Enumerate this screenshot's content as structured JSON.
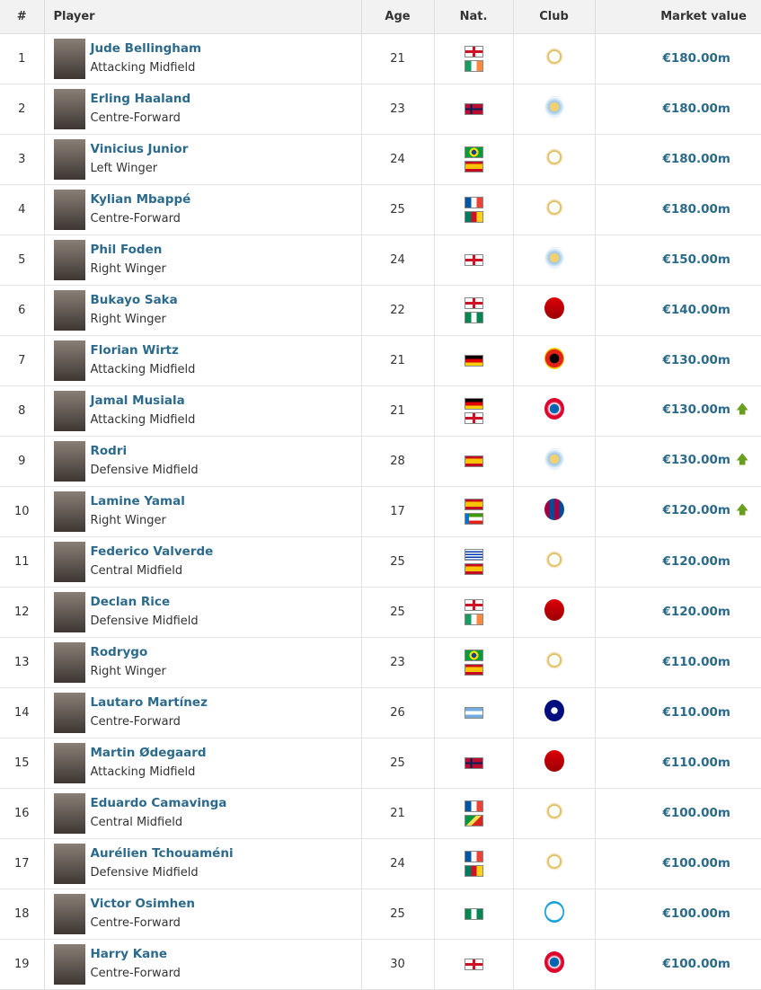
{
  "headers": {
    "num": "#",
    "player": "Player",
    "age": "Age",
    "nat": "Nat.",
    "club": "Club",
    "value": "Market value"
  },
  "colors": {
    "link": "#2c6a8c",
    "header_bg": "#f2f2f2",
    "trend_up": "#6b9e1f"
  },
  "rows": [
    {
      "rank": "1",
      "name": "Jude Bellingham",
      "position": "Attacking Midfield",
      "age": "21",
      "nat": [
        "eng",
        "irl"
      ],
      "club": "real-madrid",
      "value": "€180.00m",
      "trend": ""
    },
    {
      "rank": "2",
      "name": "Erling Haaland",
      "position": "Centre-Forward",
      "age": "23",
      "nat": [
        "nor"
      ],
      "club": "man-city",
      "value": "€180.00m",
      "trend": ""
    },
    {
      "rank": "3",
      "name": "Vinicius Junior",
      "position": "Left Winger",
      "age": "24",
      "nat": [
        "bra",
        "esp"
      ],
      "club": "real-madrid",
      "value": "€180.00m",
      "trend": ""
    },
    {
      "rank": "4",
      "name": "Kylian Mbappé",
      "position": "Centre-Forward",
      "age": "25",
      "nat": [
        "fra",
        "cmr"
      ],
      "club": "real-madrid",
      "value": "€180.00m",
      "trend": ""
    },
    {
      "rank": "5",
      "name": "Phil Foden",
      "position": "Right Winger",
      "age": "24",
      "nat": [
        "eng"
      ],
      "club": "man-city",
      "value": "€150.00m",
      "trend": ""
    },
    {
      "rank": "6",
      "name": "Bukayo Saka",
      "position": "Right Winger",
      "age": "22",
      "nat": [
        "eng",
        "nga"
      ],
      "club": "arsenal",
      "value": "€140.00m",
      "trend": ""
    },
    {
      "rank": "7",
      "name": "Florian Wirtz",
      "position": "Attacking Midfield",
      "age": "21",
      "nat": [
        "ger"
      ],
      "club": "leverkusen",
      "value": "€130.00m",
      "trend": ""
    },
    {
      "rank": "8",
      "name": "Jamal Musiala",
      "position": "Attacking Midfield",
      "age": "21",
      "nat": [
        "ger",
        "eng"
      ],
      "club": "bayern",
      "value": "€130.00m",
      "trend": "up"
    },
    {
      "rank": "9",
      "name": "Rodri",
      "position": "Defensive Midfield",
      "age": "28",
      "nat": [
        "esp"
      ],
      "club": "man-city",
      "value": "€130.00m",
      "trend": "up"
    },
    {
      "rank": "10",
      "name": "Lamine Yamal",
      "position": "Right Winger",
      "age": "17",
      "nat": [
        "esp",
        "gnq"
      ],
      "club": "barcelona",
      "value": "€120.00m",
      "trend": "up"
    },
    {
      "rank": "11",
      "name": "Federico Valverde",
      "position": "Central Midfield",
      "age": "25",
      "nat": [
        "uru",
        "esp"
      ],
      "club": "real-madrid",
      "value": "€120.00m",
      "trend": ""
    },
    {
      "rank": "12",
      "name": "Declan Rice",
      "position": "Defensive Midfield",
      "age": "25",
      "nat": [
        "eng",
        "irl"
      ],
      "club": "arsenal",
      "value": "€120.00m",
      "trend": ""
    },
    {
      "rank": "13",
      "name": "Rodrygo",
      "position": "Right Winger",
      "age": "23",
      "nat": [
        "bra",
        "esp"
      ],
      "club": "real-madrid",
      "value": "€110.00m",
      "trend": ""
    },
    {
      "rank": "14",
      "name": "Lautaro Martínez",
      "position": "Centre-Forward",
      "age": "26",
      "nat": [
        "arg"
      ],
      "club": "inter",
      "value": "€110.00m",
      "trend": ""
    },
    {
      "rank": "15",
      "name": "Martin Ødegaard",
      "position": "Attacking Midfield",
      "age": "25",
      "nat": [
        "nor"
      ],
      "club": "arsenal",
      "value": "€110.00m",
      "trend": ""
    },
    {
      "rank": "16",
      "name": "Eduardo Camavinga",
      "position": "Central Midfield",
      "age": "21",
      "nat": [
        "fra",
        "cog"
      ],
      "club": "real-madrid",
      "value": "€100.00m",
      "trend": ""
    },
    {
      "rank": "17",
      "name": "Aurélien Tchouaméni",
      "position": "Defensive Midfield",
      "age": "24",
      "nat": [
        "fra",
        "cmr"
      ],
      "club": "real-madrid",
      "value": "€100.00m",
      "trend": ""
    },
    {
      "rank": "18",
      "name": "Victor Osimhen",
      "position": "Centre-Forward",
      "age": "25",
      "nat": [
        "nga"
      ],
      "club": "napoli",
      "value": "€100.00m",
      "trend": ""
    },
    {
      "rank": "19",
      "name": "Harry Kane",
      "position": "Centre-Forward",
      "age": "30",
      "nat": [
        "eng"
      ],
      "club": "bayern",
      "value": "€100.00m",
      "trend": ""
    }
  ]
}
